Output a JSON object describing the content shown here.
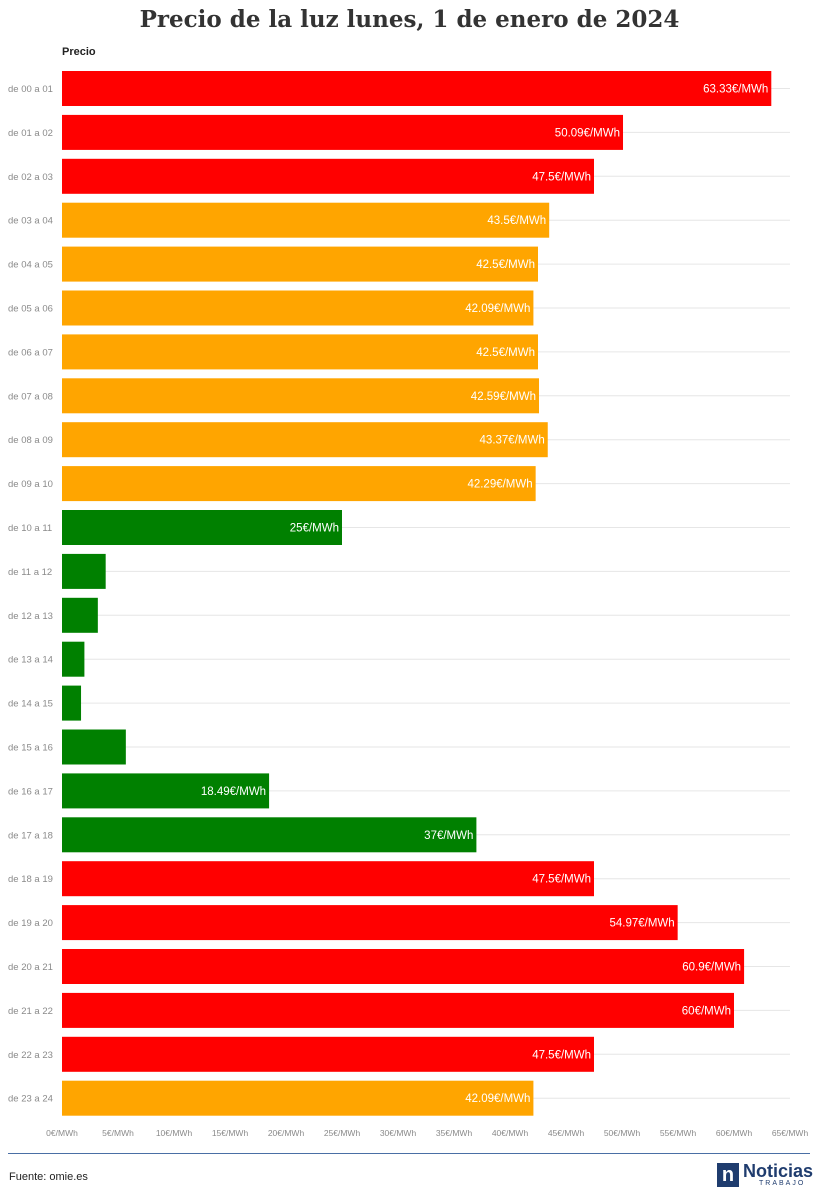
{
  "chart_data": {
    "type": "bar",
    "orientation": "horizontal",
    "title": "Precio de la luz lunes, 1 de enero de 2024",
    "column_label": "Precio",
    "unit_suffix": "€/MWh",
    "categories": [
      "de 00 a 01",
      "de 01 a 02",
      "de 02 a 03",
      "de 03 a 04",
      "de 04 a 05",
      "de 05 a 06",
      "de 06 a 07",
      "de 07 a 08",
      "de 08 a 09",
      "de 09 a 10",
      "de 10 a 11",
      "de 11 a 12",
      "de 12 a 13",
      "de 13 a 14",
      "de 14 a 15",
      "de 15 a 16",
      "de 16 a 17",
      "de 17 a 18",
      "de 18 a 19",
      "de 19 a 20",
      "de 20 a 21",
      "de 21 a 22",
      "de 22 a 23",
      "de 23 a 24"
    ],
    "values": [
      63.33,
      50.09,
      47.5,
      43.5,
      42.5,
      42.09,
      42.5,
      42.59,
      43.37,
      42.29,
      25,
      3.9,
      3.2,
      2.0,
      1.7,
      5.7,
      18.49,
      37,
      47.5,
      54.97,
      60.9,
      60,
      47.5,
      42.09
    ],
    "labels": [
      "63.33€/MWh",
      "50.09€/MWh",
      "47.5€/MWh",
      "43.5€/MWh",
      "42.5€/MWh",
      "42.09€/MWh",
      "42.5€/MWh",
      "42.59€/MWh",
      "43.37€/MWh",
      "42.29€/MWh",
      "25€/MWh",
      "",
      "",
      "",
      "",
      "",
      "18.49€/MWh",
      "37€/MWh",
      "47.5€/MWh",
      "54.97€/MWh",
      "60.9€/MWh",
      "60€/MWh",
      "47.5€/MWh",
      "42.09€/MWh"
    ],
    "levels": [
      "high",
      "high",
      "high",
      "mid",
      "mid",
      "mid",
      "mid",
      "mid",
      "mid",
      "mid",
      "low",
      "low",
      "low",
      "low",
      "low",
      "low",
      "low",
      "low",
      "high",
      "high",
      "high",
      "high",
      "high",
      "mid"
    ],
    "colors": {
      "high": "#ff0000",
      "mid": "#ffa500",
      "low": "#008000"
    },
    "xlim": [
      0,
      65
    ],
    "xticks": [
      0,
      5,
      10,
      15,
      20,
      25,
      30,
      35,
      40,
      45,
      50,
      55,
      60,
      65
    ],
    "xtick_labels": [
      "0€/MWh",
      "5€/MWh",
      "10€/MWh",
      "15€/MWh",
      "20€/MWh",
      "25€/MWh",
      "30€/MWh",
      "35€/MWh",
      "40€/MWh",
      "45€/MWh",
      "50€/MWh",
      "55€/MWh",
      "60€/MWh",
      "65€/MWh"
    ],
    "grid": true,
    "legend": "none"
  },
  "footer": {
    "source": "Fuente: omie.es",
    "logo_mark": "n",
    "logo_name": "Noticias",
    "logo_sub": "TRABAJO"
  }
}
